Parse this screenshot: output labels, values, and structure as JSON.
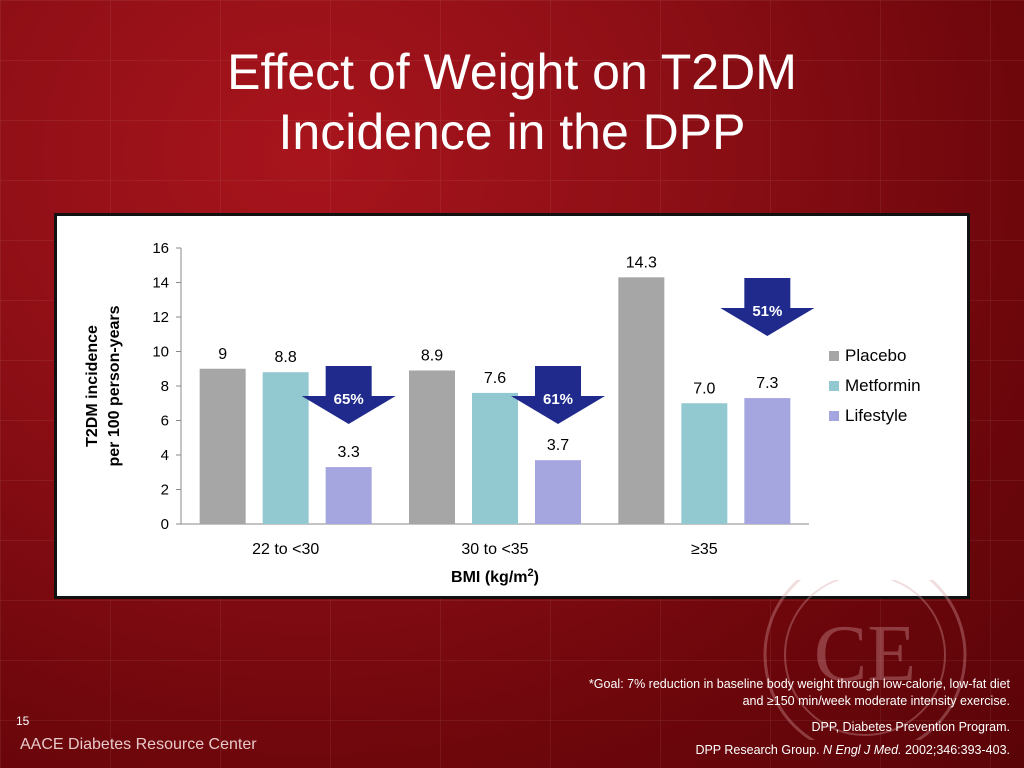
{
  "slide": {
    "title_line1": "Effect of Weight on T2DM",
    "title_line2": "Incidence in the DPP",
    "page_number": "15",
    "brand": "AACE Diabetes Resource Center",
    "footnote_goal_line1": "*Goal: 7% reduction in baseline body weight through low-calorie, low-fat diet",
    "footnote_goal_line2": "and ≥150 min/week moderate intensity exercise.",
    "footnote_dpp": "DPP, Diabetes Prevention Program.",
    "citation_prefix": "DPP Research Group. ",
    "citation_journal": "N Engl J Med.",
    "citation_suffix": " 2002;346:393-403.",
    "seal_text": "CE",
    "colors": {
      "background": "#8e0f16",
      "arrow": "#1f2a8c"
    }
  },
  "chart_data": {
    "type": "bar",
    "categories": [
      "22 to <30",
      "30 to <35",
      "≥35"
    ],
    "series": [
      {
        "name": "Placebo",
        "values": [
          9,
          8.9,
          14.3
        ],
        "labels": [
          "9",
          "8.9",
          "14.3"
        ],
        "color": "#a6a6a6"
      },
      {
        "name": "Metformin",
        "values": [
          8.8,
          7.6,
          7.0
        ],
        "labels": [
          "8.8",
          "7.6",
          "7.0"
        ],
        "color": "#92c9d1"
      },
      {
        "name": "Lifestyle",
        "values": [
          3.3,
          3.7,
          7.3
        ],
        "labels": [
          "3.3",
          "3.7",
          "7.3"
        ],
        "color": "#a5a5e0"
      }
    ],
    "reductions": [
      "65%",
      "61%",
      "51%"
    ],
    "ylabel_line1": "T2DM incidence",
    "ylabel_line2": "per 100 person-years",
    "xlabel": "BMI (kg/m",
    "xlabel_sup": "2",
    "xlabel_end": ")",
    "ylim": [
      0,
      16
    ],
    "yticks": [
      0,
      2,
      4,
      6,
      8,
      10,
      12,
      14,
      16
    ],
    "legend_position": "right",
    "grid": false
  }
}
